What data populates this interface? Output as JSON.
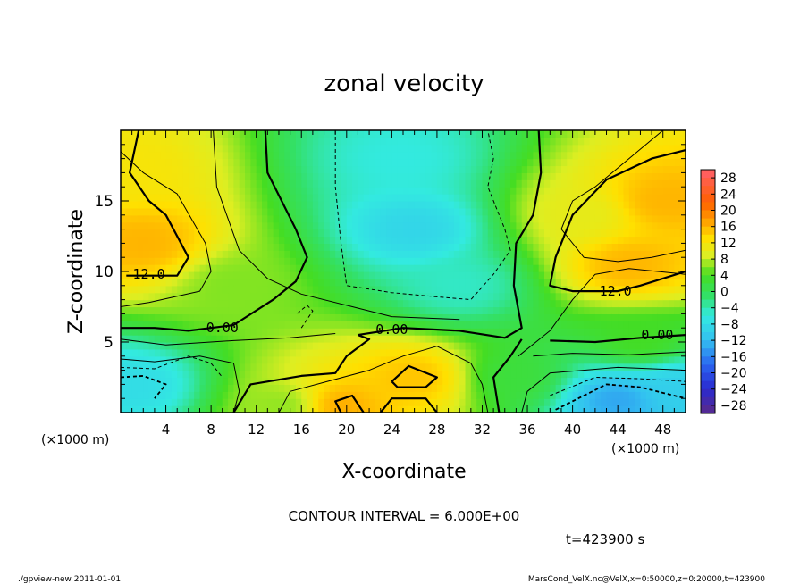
{
  "chart_data": {
    "type": "heatmap",
    "title": "zonal velocity",
    "xlabel": "X-coordinate",
    "ylabel": "Z-coordinate",
    "x_unit": "(×1000 m)",
    "z_unit": "(×1000 m)",
    "xlim": [
      0,
      50
    ],
    "ylim": [
      0,
      20
    ],
    "x_ticks": [
      "4",
      "8",
      "12",
      "16",
      "20",
      "24",
      "28",
      "32",
      "36",
      "40",
      "44",
      "48"
    ],
    "y_ticks": [
      "5",
      "10",
      "15"
    ],
    "colorbar_ticks": [
      "28",
      "24",
      "20",
      "16",
      "12",
      "8",
      "4",
      "0",
      "−4",
      "−8",
      "−12",
      "−16",
      "−20",
      "−24",
      "−28"
    ],
    "colorbar_range": [
      -30,
      30
    ],
    "contour_interval_text": "CONTOUR INTERVAL = 6.000E+00",
    "time_text": "t=423900 s",
    "contour_labels": [
      {
        "text": "12.0",
        "x": 2.5,
        "z": 9.8
      },
      {
        "text": "12.0",
        "x": 43.8,
        "z": 8.6
      },
      {
        "text": "0.00",
        "x": 9.0,
        "z": 6.0
      },
      {
        "text": "0.00",
        "x": 24.0,
        "z": 5.9
      },
      {
        "text": "0.00",
        "x": 47.5,
        "z": 5.5
      }
    ],
    "velocity_features": [
      {
        "x": 2,
        "z": 12,
        "value": 16
      },
      {
        "x": 0,
        "z": 17,
        "value": 12
      },
      {
        "x": 45,
        "z": 10.5,
        "value": 16
      },
      {
        "x": 48,
        "z": 15,
        "value": 16
      },
      {
        "x": 41,
        "z": 14,
        "value": 10
      },
      {
        "x": 26,
        "z": 13,
        "value": -9
      },
      {
        "x": 25,
        "z": 18,
        "value": -6
      },
      {
        "x": 30,
        "z": 9,
        "value": -5
      },
      {
        "x": 19,
        "z": 0.5,
        "value": 17
      },
      {
        "x": 26,
        "z": 2.5,
        "value": 15
      },
      {
        "x": 44,
        "z": 1,
        "value": -14
      },
      {
        "x": 49,
        "z": 1.8,
        "value": -10
      },
      {
        "x": 1,
        "z": 2,
        "value": -8
      },
      {
        "x": 15,
        "z": 0.5,
        "value": 6
      },
      {
        "x": 10,
        "z": 9,
        "value": 6
      },
      {
        "x": 35,
        "z": 2.5,
        "value": 2
      },
      {
        "x": 46,
        "z": 5,
        "value": 4
      }
    ]
  },
  "footer": {
    "left": "./gpview-new   2011-01-01",
    "right": "MarsCond_VelX.nc@VelX,x=0:50000,z=0:20000,t=423900"
  }
}
